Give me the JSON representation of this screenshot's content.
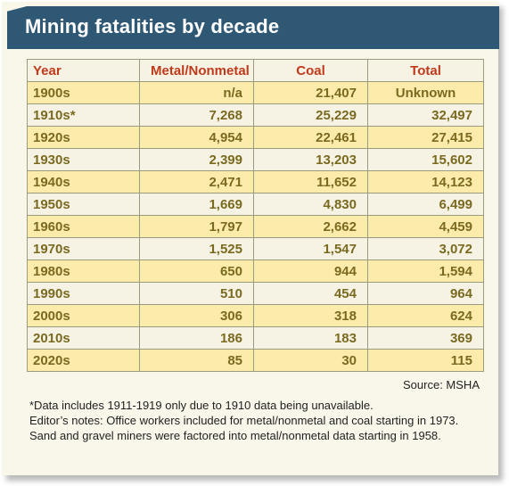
{
  "title": "Mining fatalities by decade",
  "chart_data": {
    "type": "table",
    "columns": [
      "Year",
      "Metal/Nonmetal",
      "Coal",
      "Total"
    ],
    "rows": [
      {
        "year": "1900s",
        "metal": "n/a",
        "coal": "21,407",
        "total": "Unknown",
        "highlight": true
      },
      {
        "year": "1910s*",
        "metal": "7,268",
        "coal": "25,229",
        "total": "32,497",
        "highlight": false
      },
      {
        "year": "1920s",
        "metal": "4,954",
        "coal": "22,461",
        "total": "27,415",
        "highlight": true
      },
      {
        "year": "1930s",
        "metal": "2,399",
        "coal": "13,203",
        "total": "15,602",
        "highlight": false
      },
      {
        "year": "1940s",
        "metal": "2,471",
        "coal": "11,652",
        "total": "14,123",
        "highlight": true
      },
      {
        "year": "1950s",
        "metal": "1,669",
        "coal": "4,830",
        "total": "6,499",
        "highlight": false
      },
      {
        "year": "1960s",
        "metal": "1,797",
        "coal": "2,662",
        "total": "4,459",
        "highlight": true
      },
      {
        "year": "1970s",
        "metal": "1,525",
        "coal": "1,547",
        "total": "3,072",
        "highlight": false
      },
      {
        "year": "1980s",
        "metal": "650",
        "coal": "944",
        "total": "1,594",
        "highlight": true
      },
      {
        "year": "1990s",
        "metal": "510",
        "coal": "454",
        "total": "964",
        "highlight": false
      },
      {
        "year": "2000s",
        "metal": "306",
        "coal": "318",
        "total": "624",
        "highlight": true
      },
      {
        "year": "2010s",
        "metal": "186",
        "coal": "183",
        "total": "369",
        "highlight": false
      },
      {
        "year": "2020s",
        "metal": "85",
        "coal": "30",
        "total": "115",
        "highlight": true
      }
    ]
  },
  "source": "Source: MSHA",
  "footnotes": [
    "*Data includes 1911-1919 only due to 1910 data being unavailable.",
    "Editor’s notes: Office workers included for metal/nonmetal and coal starting in 1973. Sand and gravel miners were factored into metal/nonmetal data starting in 1958."
  ],
  "colors": {
    "banner": "#2f5875",
    "header_text": "#c0391b",
    "cell_text": "#7a6a20",
    "row_highlight": "#fcecab",
    "row_plain": "#f7f3e4",
    "card_background": "#f9f6ea"
  }
}
